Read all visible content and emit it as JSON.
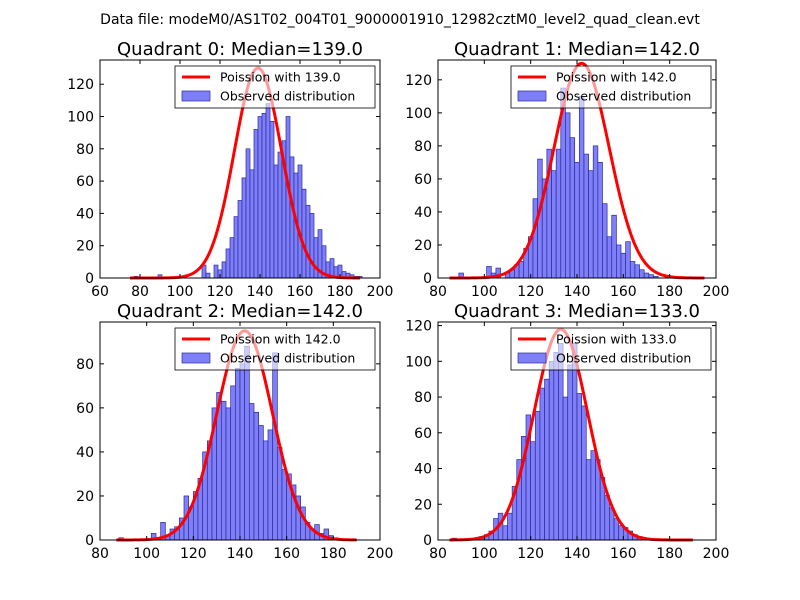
{
  "suptitle": "Data file: modeM0/AS1T02_004T01_9000001910_12982cztM0_level2_quad_clean.evt",
  "colors": {
    "hist_fill": "#7f7ff9",
    "hist_edge": "#2b2b9a",
    "curve": "#ff0000",
    "frame": "#000000"
  },
  "chart_data": [
    {
      "type": "bar",
      "title": "Quadrant 0: Median=139.0",
      "legend": {
        "curve": "Poission with 139.0",
        "hist": "Observed distribution",
        "placement": "top-right"
      },
      "xlim": [
        60,
        200
      ],
      "ylim": [
        0,
        135
      ],
      "xticks": [
        60,
        80,
        100,
        120,
        140,
        160,
        180,
        200
      ],
      "yticks": [
        0,
        20,
        40,
        60,
        80,
        100,
        120
      ],
      "bin_start": 77,
      "bin_width": 2,
      "values": [
        1,
        0,
        0,
        0,
        0,
        0,
        2,
        0,
        0,
        0,
        0,
        0,
        0,
        0,
        0,
        0,
        0,
        8,
        3,
        0,
        8,
        5,
        10,
        18,
        25,
        38,
        48,
        62,
        80,
        67,
        92,
        100,
        102,
        108,
        97,
        70,
        78,
        85,
        100,
        75,
        65,
        70,
        55,
        45,
        40,
        25,
        30,
        20,
        10,
        12,
        7,
        8,
        4,
        3,
        2,
        1,
        1
      ],
      "curve_mean": 139.0,
      "curve_peak": 130,
      "curve_x": [
        75,
        190
      ]
    },
    {
      "type": "bar",
      "title": "Quadrant 1: Median=142.0",
      "legend": {
        "curve": "Poission with 142.0",
        "hist": "Observed distribution",
        "placement": "top-right"
      },
      "xlim": [
        80,
        200
      ],
      "ylim": [
        0,
        132
      ],
      "xticks": [
        80,
        100,
        120,
        140,
        160,
        180,
        200
      ],
      "yticks": [
        0,
        20,
        40,
        60,
        80,
        100,
        120
      ],
      "bin_start": 89,
      "bin_width": 2,
      "values": [
        3,
        0,
        0,
        0,
        0,
        0,
        7,
        3,
        6,
        0,
        3,
        5,
        8,
        10,
        18,
        25,
        48,
        72,
        60,
        78,
        65,
        78,
        115,
        100,
        85,
        70,
        110,
        75,
        65,
        80,
        70,
        45,
        25,
        38,
        20,
        15,
        22,
        10,
        8,
        5,
        3,
        2,
        1,
        0,
        0,
        0,
        0
      ],
      "curve_mean": 142.0,
      "curve_peak": 130,
      "curve_x": [
        85,
        195
      ]
    },
    {
      "type": "bar",
      "title": "Quadrant 2: Median=142.0",
      "legend": {
        "curve": "Poission with 142.0",
        "hist": "Observed distribution",
        "placement": "top-right"
      },
      "xlim": [
        80,
        200
      ],
      "ylim": [
        0,
        99
      ],
      "xticks": [
        80,
        100,
        120,
        140,
        160,
        180,
        200
      ],
      "yticks": [
        0,
        20,
        40,
        60,
        80
      ],
      "bin_start": 88,
      "bin_width": 2,
      "values": [
        1,
        0,
        0,
        0,
        0,
        0,
        0,
        3,
        1,
        8,
        2,
        5,
        6,
        10,
        20,
        15,
        22,
        28,
        40,
        45,
        60,
        67,
        63,
        60,
        70,
        78,
        80,
        88,
        62,
        58,
        52,
        45,
        50,
        85,
        42,
        32,
        30,
        25,
        20,
        15,
        8,
        5,
        7,
        3,
        5,
        2,
        1
      ],
      "curve_mean": 142.0,
      "curve_peak": 95,
      "curve_x": [
        87,
        190
      ]
    },
    {
      "type": "bar",
      "title": "Quadrant 3: Median=133.0",
      "legend": {
        "curve": "Poission with 133.0",
        "hist": "Observed distribution",
        "placement": "top-right"
      },
      "xlim": [
        80,
        200
      ],
      "ylim": [
        0,
        122
      ],
      "xticks": [
        80,
        100,
        120,
        140,
        160,
        180,
        200
      ],
      "yticks": [
        0,
        20,
        40,
        60,
        80,
        100,
        120
      ],
      "bin_start": 86,
      "bin_width": 2,
      "values": [
        1,
        0,
        0,
        0,
        0,
        0,
        2,
        3,
        5,
        12,
        15,
        8,
        15,
        30,
        45,
        58,
        70,
        55,
        72,
        85,
        90,
        100,
        105,
        110,
        80,
        98,
        110,
        82,
        75,
        45,
        50,
        45,
        35,
        25,
        18,
        12,
        8,
        7,
        5,
        3,
        2,
        0,
        0,
        0,
        0,
        0,
        0
      ],
      "curve_mean": 133.0,
      "curve_peak": 118,
      "curve_x": [
        85,
        190
      ]
    }
  ]
}
